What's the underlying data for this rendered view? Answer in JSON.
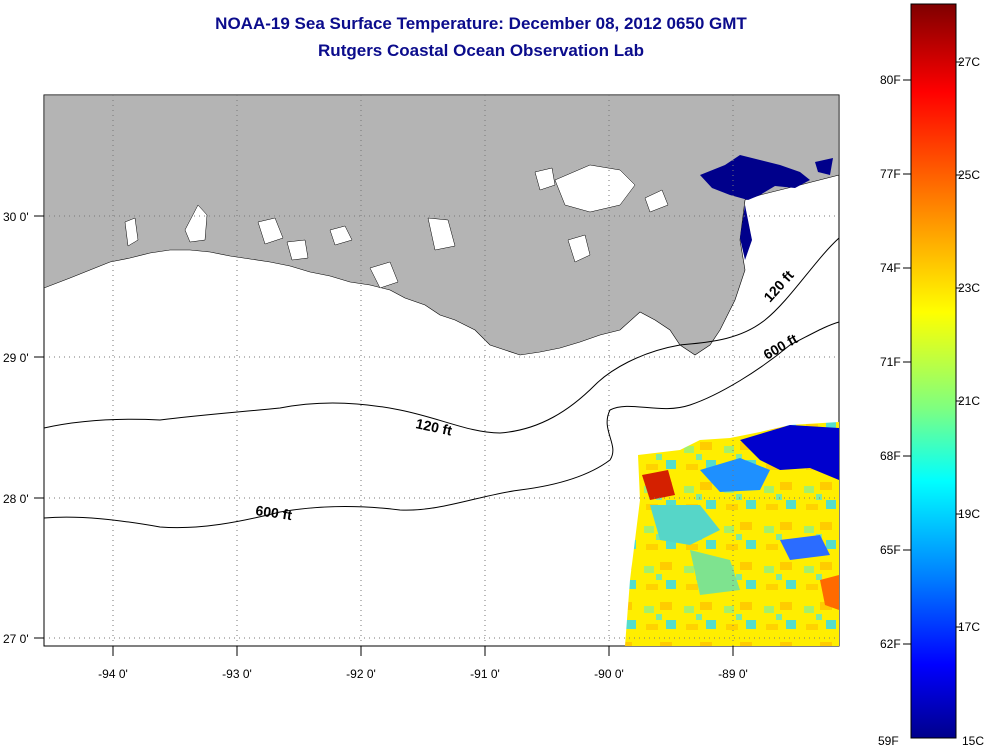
{
  "header": {
    "title": "NOAA-19 Sea Surface Temperature:  December 08, 2012 0650 GMT",
    "subtitle": "Rutgers Coastal Ocean Observation Lab"
  },
  "map": {
    "x_ticks": [
      "-94 0'",
      "-93 0'",
      "-92 0'",
      "-91 0'",
      "-90 0'",
      "-89 0'"
    ],
    "y_ticks": [
      "30 0'",
      "29 0'",
      "28 0'",
      "27 0'"
    ],
    "contour_labels": [
      "120 ft",
      "600 ft",
      "120 ft",
      "600 ft"
    ],
    "colors": {
      "land": "#b4b4b4",
      "cold": "#00008b",
      "warm": "#ffee00"
    }
  },
  "colorbar": {
    "fahrenheit": [
      "80F",
      "77F",
      "74F",
      "71F",
      "68F",
      "65F",
      "62F",
      "59F"
    ],
    "celsius": [
      "27C",
      "25C",
      "23C",
      "21C",
      "19C",
      "17C",
      "15C"
    ]
  }
}
